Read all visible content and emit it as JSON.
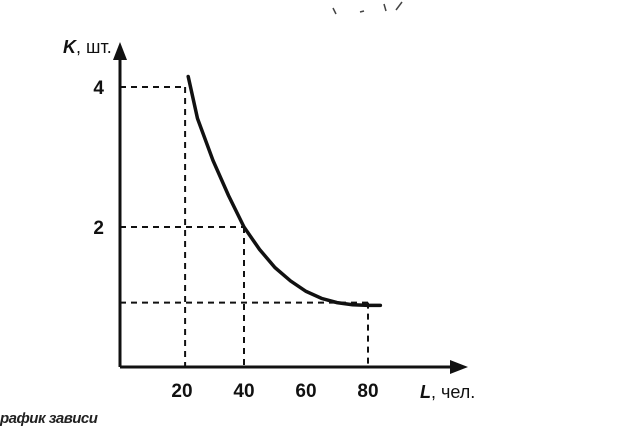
{
  "chart_data": {
    "type": "line",
    "title": "",
    "xlabel": {
      "symbol": "L",
      "unit": ", чел."
    },
    "ylabel": {
      "symbol": "K",
      "unit": ", шт."
    },
    "x_ticks": [
      20,
      40,
      60,
      80
    ],
    "y_ticks": [
      2,
      4
    ],
    "xlim": [
      0,
      90
    ],
    "ylim": [
      0,
      4.5
    ],
    "grid": false,
    "series": [
      {
        "x": [
          22,
          25,
          30,
          35,
          40,
          45,
          50,
          55,
          60,
          65,
          70,
          75,
          80,
          84
        ],
        "y": [
          4.15,
          3.55,
          2.95,
          2.45,
          2.0,
          1.68,
          1.42,
          1.23,
          1.08,
          0.98,
          0.92,
          0.89,
          0.88,
          0.88
        ]
      }
    ],
    "guides": [
      {
        "x": 21,
        "y": 4
      },
      {
        "x": 40,
        "y": 2
      },
      {
        "x": 80,
        "y": 0.92
      }
    ]
  },
  "caption": "рафик зависи"
}
